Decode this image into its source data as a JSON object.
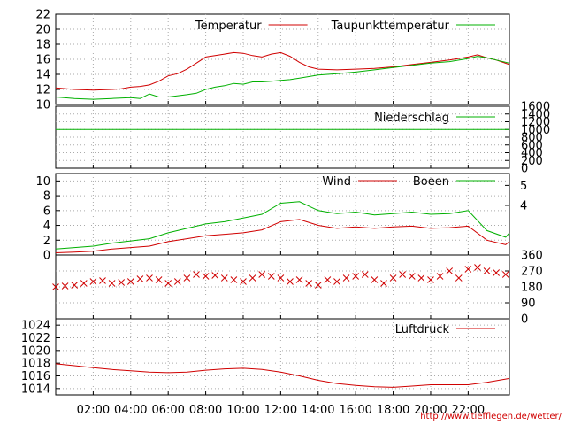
{
  "source_url": "http://www.tiefflegen.de/wetter/",
  "colors": {
    "red": "#d00000",
    "green": "#00b000",
    "grid": "#aaaaaa",
    "axis": "#000000"
  },
  "time_axis": {
    "ticks": [
      "02:00",
      "04:00",
      "06:00",
      "08:00",
      "10:00",
      "12:00",
      "14:00",
      "16:00",
      "18:00",
      "20:00",
      "22:00"
    ],
    "tick_hours": [
      2,
      4,
      6,
      8,
      10,
      12,
      14,
      16,
      18,
      20,
      22
    ],
    "range": [
      0,
      24.2
    ]
  },
  "chart_data": [
    {
      "type": "line",
      "panel": "temperature",
      "ylim": [
        10,
        22
      ],
      "yticks": [
        10,
        12,
        14,
        16,
        18,
        20,
        22
      ],
      "legend_placement": "top-right",
      "series": [
        {
          "name": "Temperatur",
          "color": "#d00000",
          "x": [
            0,
            1,
            2,
            3,
            3.5,
            4,
            4.5,
            5,
            5.5,
            6,
            6.5,
            7,
            7.5,
            8,
            8.5,
            9,
            9.5,
            10,
            10.5,
            11,
            11.5,
            12,
            12.5,
            13,
            13.5,
            14,
            15,
            16,
            17,
            18,
            19,
            20,
            21,
            22,
            22.5,
            23,
            23.5,
            24.2
          ],
          "y": [
            12.2,
            12.0,
            11.9,
            12.0,
            12.1,
            12.3,
            12.4,
            12.6,
            13.1,
            13.8,
            14.1,
            14.7,
            15.5,
            16.3,
            16.5,
            16.7,
            16.9,
            16.8,
            16.5,
            16.3,
            16.7,
            16.9,
            16.4,
            15.6,
            15.0,
            14.7,
            14.6,
            14.7,
            14.8,
            15.0,
            15.3,
            15.6,
            15.9,
            16.3,
            16.6,
            16.2,
            15.9,
            15.3
          ]
        },
        {
          "name": "Taupunkttemperatur",
          "color": "#00b000",
          "x": [
            0,
            1,
            2,
            3,
            4,
            4.5,
            5,
            5.5,
            6,
            7,
            7.5,
            8,
            8.5,
            9,
            9.5,
            10,
            10.5,
            11,
            11.5,
            12,
            12.5,
            13,
            14,
            15,
            16,
            17,
            18,
            19,
            20,
            21,
            22,
            22.5,
            23,
            23.5,
            24.2
          ],
          "y": [
            11.0,
            10.8,
            10.7,
            10.8,
            10.9,
            10.8,
            11.4,
            11.0,
            11.0,
            11.3,
            11.5,
            12.0,
            12.3,
            12.5,
            12.8,
            12.7,
            13.0,
            13.0,
            13.1,
            13.2,
            13.3,
            13.5,
            13.9,
            14.1,
            14.3,
            14.6,
            14.9,
            15.2,
            15.5,
            15.7,
            16.1,
            16.4,
            16.2,
            15.9,
            15.5
          ]
        }
      ]
    },
    {
      "type": "line",
      "panel": "precipitation",
      "ylim": [
        0,
        1600
      ],
      "yticks": [
        0,
        200,
        400,
        600,
        800,
        1000,
        1200,
        1400,
        1600
      ],
      "legend_placement": "top-right",
      "series": [
        {
          "name": "Niederschlag",
          "color": "#00b000",
          "x": [
            0,
            24.2
          ],
          "y": [
            1000,
            1000
          ]
        }
      ]
    },
    {
      "type": "line",
      "panel": "wind",
      "ylim": [
        0,
        11
      ],
      "yticks": [
        0,
        2,
        4,
        6,
        8,
        10
      ],
      "bft_ticks": [
        4,
        5
      ],
      "bft_values": [
        6.7,
        9.4
      ],
      "legend_placement": "top-right",
      "series": [
        {
          "name": "Wind",
          "color": "#d00000",
          "x": [
            0,
            1,
            2,
            3,
            4,
            5,
            6,
            7,
            8,
            9,
            10,
            11,
            12,
            13,
            14,
            15,
            16,
            17,
            18,
            19,
            20,
            21,
            22,
            23,
            24,
            24.2
          ],
          "y": [
            0.3,
            0.4,
            0.5,
            0.8,
            1.0,
            1.2,
            1.8,
            2.2,
            2.6,
            2.8,
            3.0,
            3.4,
            4.5,
            4.8,
            4.0,
            3.6,
            3.8,
            3.6,
            3.8,
            3.9,
            3.6,
            3.7,
            3.9,
            2.0,
            1.4,
            1.8
          ]
        },
        {
          "name": "Boeen",
          "color": "#00b000",
          "x": [
            0,
            1,
            2,
            3,
            4,
            5,
            6,
            7,
            8,
            9,
            10,
            11,
            12,
            13,
            14,
            15,
            16,
            17,
            18,
            19,
            20,
            21,
            22,
            23,
            24,
            24.2
          ],
          "y": [
            0.8,
            1.0,
            1.2,
            1.6,
            1.9,
            2.2,
            3.0,
            3.6,
            4.2,
            4.5,
            5.0,
            5.5,
            7.0,
            7.2,
            6.0,
            5.6,
            5.8,
            5.4,
            5.6,
            5.8,
            5.5,
            5.6,
            6.0,
            3.3,
            2.4,
            3.0
          ]
        }
      ]
    },
    {
      "type": "scatter",
      "panel": "wind-direction",
      "ylim": [
        0,
        360
      ],
      "yticks": [
        0,
        90,
        180,
        270,
        360
      ],
      "marker": "x",
      "series": [
        {
          "color": "#d00000",
          "x": [
            0,
            0.5,
            1,
            1.5,
            2,
            2.5,
            3,
            3.5,
            4,
            4.5,
            5,
            5.5,
            6,
            6.5,
            7,
            7.5,
            8,
            8.5,
            9,
            9.5,
            10,
            10.5,
            11,
            11.5,
            12,
            12.5,
            13,
            13.5,
            14,
            14.5,
            15,
            15.5,
            16,
            16.5,
            17,
            17.5,
            18,
            18.5,
            19,
            19.5,
            20,
            20.5,
            21,
            21.5,
            22,
            22.5,
            23,
            23.5,
            24
          ],
          "y": [
            180,
            185,
            190,
            200,
            210,
            215,
            200,
            205,
            210,
            225,
            230,
            220,
            200,
            210,
            230,
            250,
            240,
            245,
            230,
            220,
            210,
            230,
            250,
            240,
            230,
            210,
            220,
            200,
            190,
            220,
            210,
            230,
            240,
            250,
            220,
            200,
            230,
            250,
            240,
            230,
            220,
            240,
            270,
            230,
            280,
            290,
            270,
            260,
            250
          ]
        }
      ]
    },
    {
      "type": "line",
      "panel": "pressure",
      "ylim": [
        1013,
        1025
      ],
      "yticks": [
        1014,
        1016,
        1018,
        1020,
        1022,
        1024
      ],
      "legend_placement": "top-right",
      "series": [
        {
          "name": "Luftdruck",
          "color": "#d00000",
          "x": [
            0,
            1,
            2,
            3,
            4,
            5,
            6,
            7,
            8,
            9,
            10,
            11,
            12,
            13,
            14,
            15,
            16,
            17,
            18,
            19,
            20,
            21,
            22,
            23,
            24,
            24.2
          ],
          "y": [
            1017.9,
            1017.6,
            1017.3,
            1017.0,
            1016.8,
            1016.6,
            1016.5,
            1016.6,
            1016.9,
            1017.1,
            1017.2,
            1017.0,
            1016.6,
            1016.0,
            1015.3,
            1014.8,
            1014.5,
            1014.3,
            1014.2,
            1014.4,
            1014.6,
            1014.6,
            1014.6,
            1015.0,
            1015.5,
            1015.6
          ]
        }
      ]
    }
  ]
}
